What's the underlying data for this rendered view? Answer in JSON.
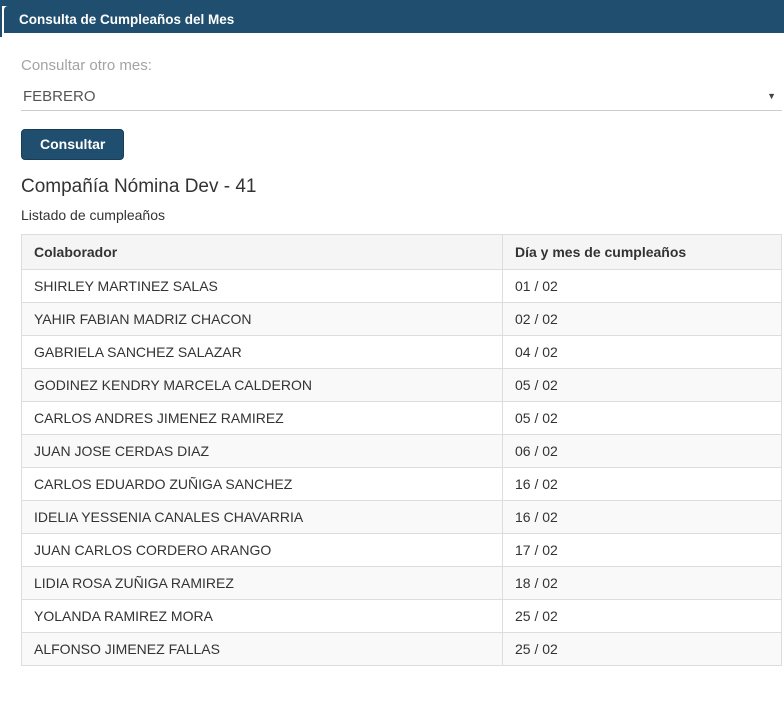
{
  "panel": {
    "title": "Consulta de Cumpleaños del Mes"
  },
  "form": {
    "label": "Consultar otro mes:",
    "month_select": {
      "value": "FEBRERO"
    },
    "submit_label": "Consultar"
  },
  "results": {
    "company_title": "Compañía Nómina Dev - 41",
    "subtitle": "Listado de cumpleaños",
    "table": {
      "columns": [
        "Colaborador",
        "Día y mes de cumpleaños"
      ],
      "rows": [
        {
          "name": "SHIRLEY MARTINEZ SALAS",
          "date": "01 / 02"
        },
        {
          "name": "YAHIR FABIAN MADRIZ CHACON",
          "date": "02 / 02"
        },
        {
          "name": "GABRIELA SANCHEZ SALAZAR",
          "date": "04 / 02"
        },
        {
          "name": "GODINEZ KENDRY MARCELA CALDERON",
          "date": "05 / 02"
        },
        {
          "name": "CARLOS ANDRES JIMENEZ RAMIREZ",
          "date": "05 / 02"
        },
        {
          "name": "JUAN JOSE CERDAS DIAZ",
          "date": "06 / 02"
        },
        {
          "name": "CARLOS EDUARDO ZUÑIGA SANCHEZ",
          "date": "16 / 02"
        },
        {
          "name": "IDELIA YESSENIA CANALES CHAVARRIA",
          "date": "16 / 02"
        },
        {
          "name": "JUAN CARLOS CORDERO ARANGO",
          "date": "17 / 02"
        },
        {
          "name": "LIDIA ROSA ZUÑIGA RAMIREZ",
          "date": "18 / 02"
        },
        {
          "name": "YOLANDA RAMIREZ MORA",
          "date": "25 / 02"
        },
        {
          "name": "ALFONSO JIMENEZ FALLAS",
          "date": "25 / 02"
        }
      ]
    }
  },
  "icons": {
    "select_arrow": "▼"
  },
  "colors": {
    "accent_blue": "#1f4e6e",
    "button_border": "#173d58",
    "table_border": "#dddddd",
    "table_header_bg": "#f5f5f5",
    "stripe_bg": "#f9f9f9",
    "label_gray": "#a3a3a3",
    "text_dark": "#333333",
    "select_text": "#555555"
  }
}
